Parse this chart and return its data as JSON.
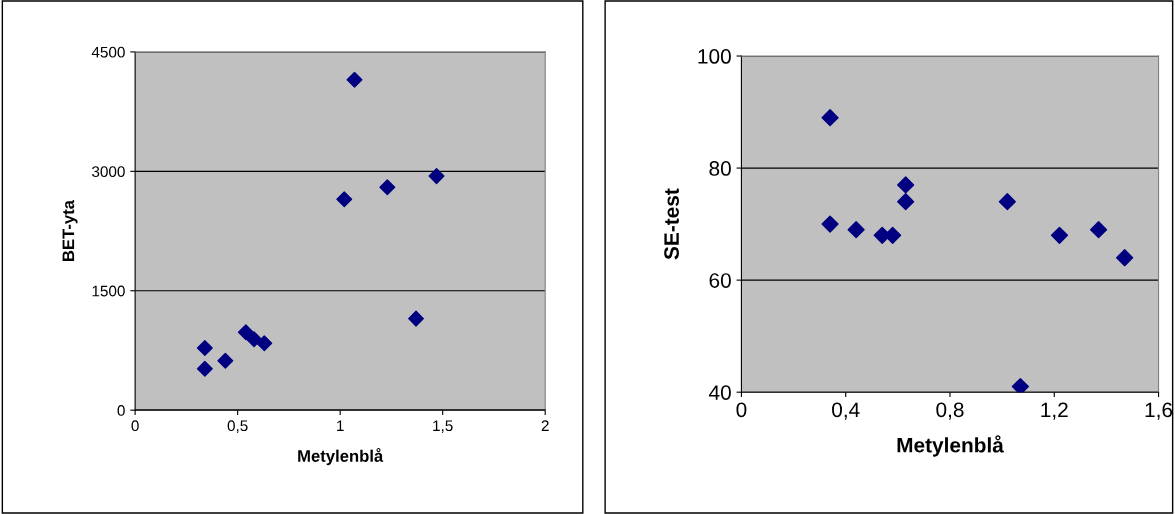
{
  "chart_data": [
    {
      "type": "scatter",
      "xlabel": "Metylenblå",
      "ylabel": "BET-yta",
      "x": [
        0.34,
        0.34,
        0.44,
        0.54,
        0.58,
        0.63,
        1.02,
        1.07,
        1.23,
        1.37,
        1.47
      ],
      "values": [
        780,
        520,
        620,
        980,
        890,
        840,
        2650,
        4150,
        2800,
        1150,
        2940
      ],
      "color": "#000080",
      "marker": "diamond",
      "xlim": [
        0,
        2
      ],
      "xticks": [
        0,
        {
          "value": 0.5,
          "label": "0,5"
        },
        1,
        {
          "value": 1.5,
          "label": "1,5"
        },
        2
      ],
      "ylim": [
        0,
        4500
      ],
      "yticks": [
        0,
        1500,
        3000,
        4500
      ],
      "grid": "y",
      "legend": false
    },
    {
      "type": "scatter",
      "xlabel": "Metylenblå",
      "ylabel": "SE-test",
      "x": [
        0.34,
        0.34,
        0.44,
        0.54,
        0.58,
        0.63,
        0.63,
        1.02,
        1.07,
        1.22,
        1.37,
        1.47
      ],
      "values": [
        89,
        70,
        69,
        68,
        68,
        77,
        74,
        74,
        41,
        68,
        69,
        64
      ],
      "color": "#000080",
      "marker": "diamond",
      "xlim": [
        0,
        1.6
      ],
      "xticks": [
        0,
        {
          "value": 0.4,
          "label": "0,4"
        },
        {
          "value": 0.8,
          "label": "0,8"
        },
        {
          "value": 1.2,
          "label": "1,2"
        },
        {
          "value": 1.6,
          "label": "1,6"
        }
      ],
      "ylim": [
        40,
        100
      ],
      "yticks": [
        40,
        60,
        80,
        100
      ],
      "grid": "y",
      "legend": false
    }
  ]
}
